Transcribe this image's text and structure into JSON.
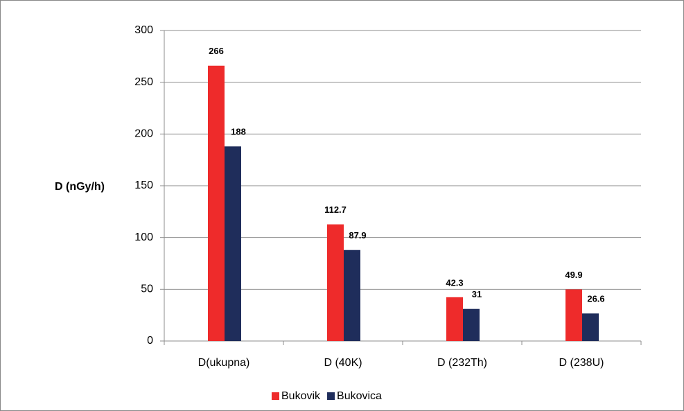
{
  "chart_data": {
    "type": "bar",
    "y_label": "D (nGy/h)",
    "categories": [
      "D(ukupna)",
      "D (40K)",
      "D (232Th)",
      "D (238U)"
    ],
    "series": [
      {
        "name": "Bukovik",
        "color": "#ee2b2b",
        "values": [
          266,
          112.7,
          42.3,
          49.9
        ]
      },
      {
        "name": "Bukovica",
        "color": "#1f2d5b",
        "values": [
          188,
          87.9,
          31,
          26.6
        ]
      }
    ],
    "ylim": [
      0,
      300
    ],
    "yticks": [
      0,
      50,
      100,
      150,
      200,
      250,
      300
    ],
    "grid": true,
    "legend": "bottom"
  }
}
